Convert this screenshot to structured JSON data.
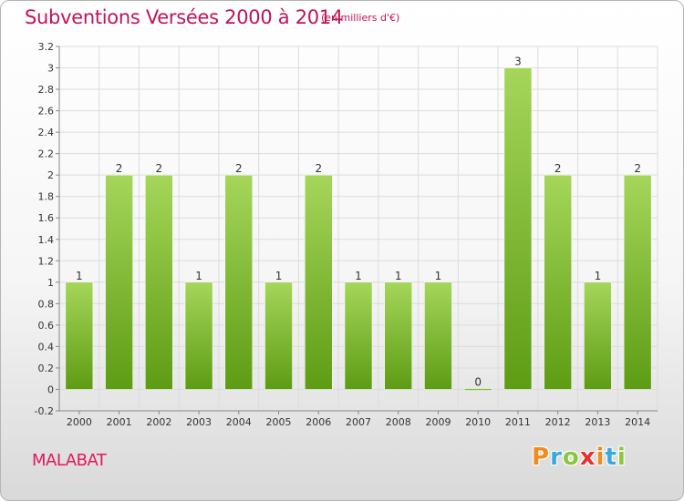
{
  "header": {
    "title": "Subventions Versées 2000 à 2014",
    "unit": "(en milliers d'€)"
  },
  "footer": {
    "commune": "MALABAT",
    "logo_letters": [
      "P",
      "r",
      "o",
      "x",
      "i",
      "t",
      "i"
    ],
    "logo_colors": [
      "#f08c1c",
      "#3aa7e0",
      "#8cc63f",
      "#e8312d",
      "#f08c1c",
      "#3aa7e0",
      "#8cc63f"
    ]
  },
  "chart_data": {
    "type": "bar",
    "categories": [
      "2000",
      "2001",
      "2002",
      "2003",
      "2004",
      "2005",
      "2006",
      "2007",
      "2008",
      "2009",
      "2010",
      "2011",
      "2012",
      "2013",
      "2014"
    ],
    "values": [
      1,
      2,
      2,
      1,
      2,
      1,
      2,
      1,
      1,
      1,
      0,
      3,
      2,
      1,
      2
    ],
    "data_labels": [
      "1",
      "2",
      "2",
      "1",
      "2",
      "1",
      "2",
      "1",
      "1",
      "1",
      "0",
      "3",
      "2",
      "1",
      "2"
    ],
    "ylim": [
      -0.2,
      3.2
    ],
    "yticks": [
      "-0.2",
      "0",
      "0.2",
      "0.4",
      "0.6",
      "0.8",
      "1",
      "1.2",
      "1.4",
      "1.6",
      "1.8",
      "2",
      "2.2",
      "2.4",
      "2.6",
      "2.8",
      "3",
      "3.2"
    ],
    "ytick_values": [
      -0.2,
      0,
      0.2,
      0.4,
      0.6,
      0.8,
      1,
      1.2,
      1.4,
      1.6,
      1.8,
      2,
      2.2,
      2.4,
      2.6,
      2.8,
      3,
      3.2
    ],
    "grid": true,
    "bar_color_top": "#a5d65a",
    "bar_color_bottom": "#5e9c14"
  }
}
